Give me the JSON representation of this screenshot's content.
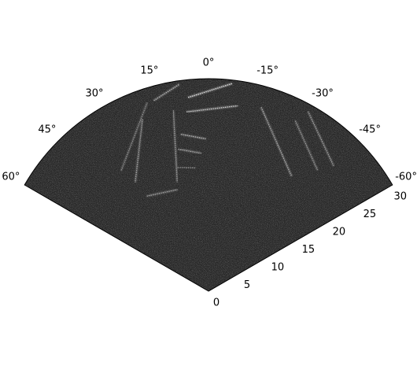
{
  "chart_data": {
    "type": "heatmap",
    "projection": "polar",
    "title": "",
    "theta_direction": "counterclockwise",
    "theta_zero": "top",
    "theta_range_deg": [
      -60,
      60
    ],
    "r_range": [
      0,
      30
    ],
    "theta_tick_values": [
      60,
      45,
      30,
      15,
      0,
      -15,
      -30,
      -45,
      -60
    ],
    "theta_tick_labels": [
      "60°",
      "45°",
      "30°",
      "15°",
      "0°",
      "-15°",
      "-30°",
      "-45°",
      "-60°"
    ],
    "r_tick_values": [
      0,
      5,
      10,
      15,
      20,
      25,
      30
    ],
    "r_tick_labels": [
      "0",
      "5",
      "10",
      "15",
      "20",
      "25",
      "30"
    ],
    "grid": false,
    "colormap": "gray",
    "background_level": 0.15,
    "features": [
      {
        "name": "upper-left-edge",
        "kind": "line",
        "points": [
          [
            28,
            16
          ],
          [
            29.5,
            8
          ]
        ],
        "intensity": 0.6
      },
      {
        "name": "upper-wall",
        "kind": "line",
        "points": [
          [
            27.5,
            6
          ],
          [
            29.5,
            -6.5
          ]
        ],
        "intensity": 0.85
      },
      {
        "name": "upper-wall-lower",
        "kind": "line",
        "points": [
          [
            25.5,
            7
          ],
          [
            26.5,
            -9
          ]
        ],
        "intensity": 0.75
      },
      {
        "name": "right-structure",
        "kind": "line",
        "points": [
          [
            27,
            -16
          ],
          [
            20,
            -36
          ]
        ],
        "intensity": 0.55
      },
      {
        "name": "right-edge-a",
        "kind": "line",
        "points": [
          [
            29,
            -29
          ],
          [
            25,
            -45
          ]
        ],
        "intensity": 0.5
      },
      {
        "name": "right-edge-b",
        "kind": "line",
        "points": [
          [
            27,
            -27
          ],
          [
            23,
            -42
          ]
        ],
        "intensity": 0.45
      },
      {
        "name": "left-structure",
        "kind": "line",
        "points": [
          [
            26,
            21
          ],
          [
            18.5,
            34
          ]
        ],
        "intensity": 0.5
      },
      {
        "name": "left-structure-b",
        "kind": "line",
        "points": [
          [
            28,
            18
          ],
          [
            21,
            36
          ]
        ],
        "intensity": 0.4
      },
      {
        "name": "inner-bar-1",
        "kind": "line",
        "points": [
          [
            22.5,
            10
          ],
          [
            21.5,
            1
          ]
        ],
        "intensity": 0.6
      },
      {
        "name": "inner-bar-2",
        "kind": "line",
        "points": [
          [
            20.5,
            12
          ],
          [
            19.5,
            3
          ]
        ],
        "intensity": 0.55
      },
      {
        "name": "inner-bar-3",
        "kind": "line",
        "points": [
          [
            18,
            14
          ],
          [
            17.5,
            6
          ]
        ],
        "intensity": 0.5
      },
      {
        "name": "inner-vertical",
        "kind": "line",
        "points": [
          [
            26,
            11
          ],
          [
            16,
            16
          ]
        ],
        "intensity": 0.5
      },
      {
        "name": "lower-left-base",
        "kind": "line",
        "points": [
          [
            16,
            33
          ],
          [
            15,
            17
          ]
        ],
        "intensity": 0.5
      }
    ]
  }
}
